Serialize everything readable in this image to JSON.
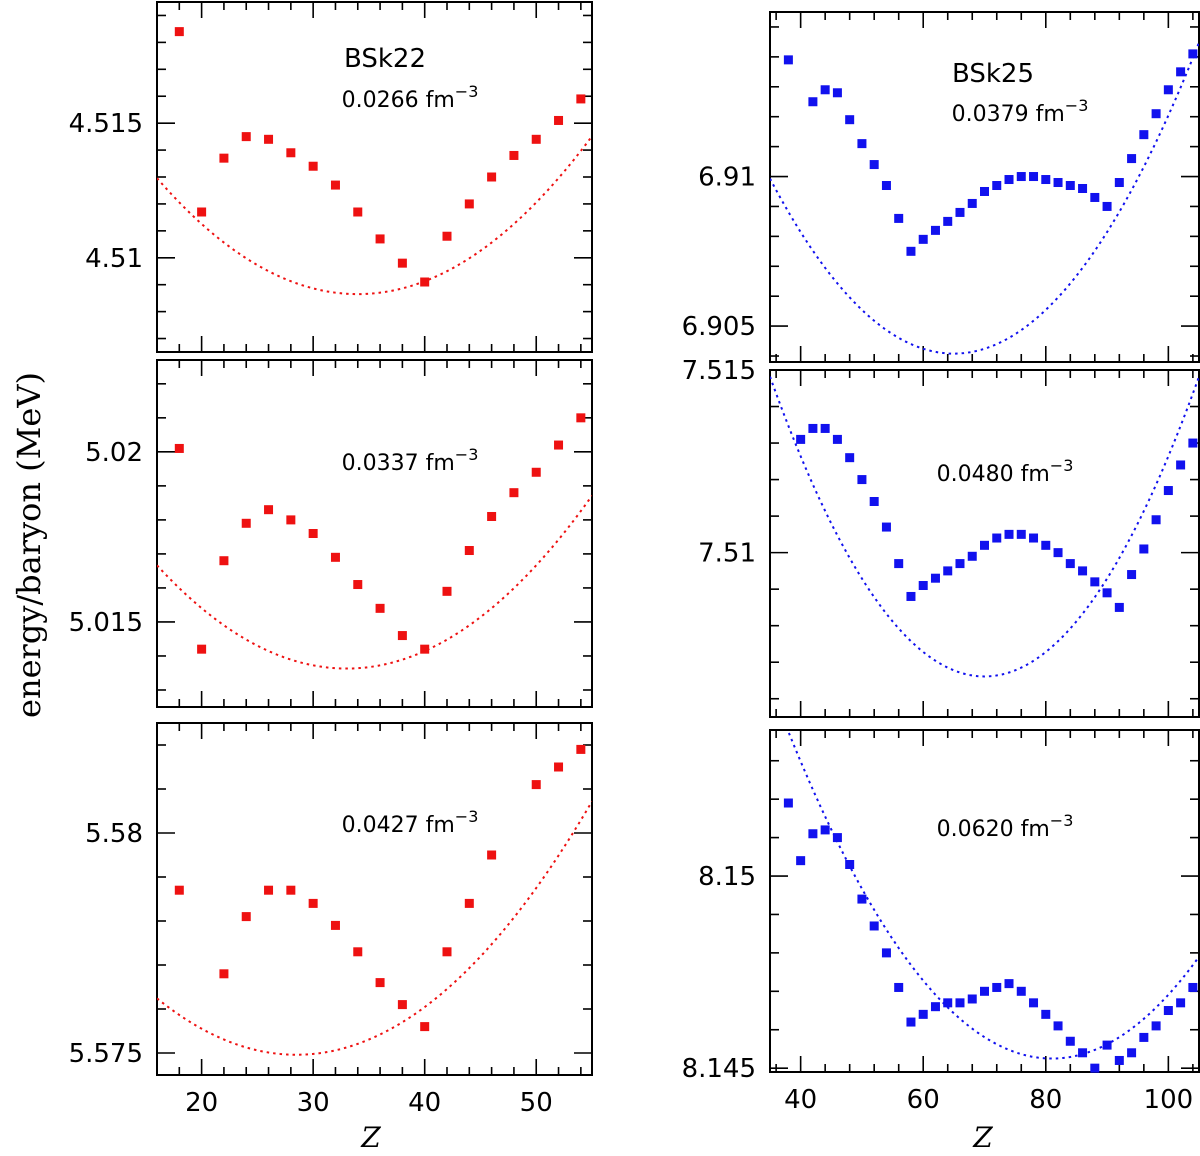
{
  "figure": {
    "ylabel": "energy/baryon (MeV)",
    "xlabel": "Z",
    "colors": {
      "left": "#ee1111",
      "right": "#1111ee",
      "axis": "#000000"
    }
  },
  "chart_data": [
    {
      "type": "scatter",
      "id": "p1",
      "model": "BSk22",
      "density": "0.0266 fm",
      "density_exp": "−3",
      "xlim": [
        16,
        55
      ],
      "ylim": [
        4.5065,
        4.5195
      ],
      "xticks": [
        20,
        30,
        40,
        50
      ],
      "yticks": [
        4.51,
        4.515
      ],
      "ytick_labels": [
        "4.51",
        "4.515"
      ],
      "y_minor_step": 0.001,
      "x_minor_step": 2,
      "points": {
        "x": [
          18,
          20,
          22,
          24,
          26,
          28,
          30,
          32,
          34,
          36,
          38,
          40,
          42,
          44,
          46,
          48,
          50,
          52,
          54
        ],
        "y": [
          4.5184,
          4.5117,
          4.5137,
          4.5145,
          4.5144,
          4.5139,
          4.5134,
          4.5127,
          4.5117,
          4.5107,
          4.5098,
          4.5091,
          4.5108,
          4.512,
          4.513,
          4.5138,
          4.5144,
          4.5151,
          4.5159
        ]
      },
      "curve": {
        "xmin": 16,
        "xmax": 55,
        "vertex_x": 34,
        "vertex_y": 4.50865,
        "a": 1.33e-05
      }
    },
    {
      "type": "scatter",
      "id": "p2",
      "model": "",
      "density": "0.0337 fm",
      "density_exp": "−3",
      "xlim": [
        16,
        55
      ],
      "ylim": [
        5.0125,
        5.0227
      ],
      "xticks": [
        20,
        30,
        40,
        50
      ],
      "yticks": [
        5.015,
        5.02
      ],
      "ytick_labels": [
        "5.015",
        "5.02"
      ],
      "y_minor_step": 0.001,
      "x_minor_step": 2,
      "points": {
        "x": [
          18,
          20,
          22,
          24,
          26,
          28,
          30,
          32,
          34,
          36,
          38,
          40,
          42,
          44,
          46,
          48,
          50,
          52,
          54
        ],
        "y": [
          5.0201,
          5.0142,
          5.0168,
          5.0179,
          5.0183,
          5.018,
          5.0176,
          5.0169,
          5.0161,
          5.0154,
          5.0146,
          5.0142,
          5.0159,
          5.0171,
          5.0181,
          5.0188,
          5.0194,
          5.0202,
          5.021
        ]
      },
      "curve": {
        "xmin": 16,
        "xmax": 55,
        "vertex_x": 33,
        "vertex_y": 5.01363,
        "a": 1.05e-05
      }
    },
    {
      "type": "scatter",
      "id": "p3",
      "model": "",
      "density": "0.0427 fm",
      "density_exp": "−3",
      "xlim": [
        16,
        55
      ],
      "ylim": [
        5.5745,
        5.5825
      ],
      "xticks": [
        20,
        30,
        40,
        50
      ],
      "xtick_labels": [
        "20",
        "30",
        "40",
        "50"
      ],
      "yticks": [
        5.575,
        5.58
      ],
      "ytick_labels": [
        "5.575",
        "5.58"
      ],
      "y_minor_step": 0.001,
      "x_minor_step": 2,
      "points": {
        "x": [
          18,
          22,
          24,
          26,
          28,
          30,
          32,
          34,
          36,
          38,
          40,
          42,
          44,
          46,
          50,
          52,
          54
        ],
        "y": [
          5.5787,
          5.5768,
          5.5781,
          5.5787,
          5.5787,
          5.5784,
          5.5779,
          5.5773,
          5.5766,
          5.5761,
          5.5756,
          5.5773,
          5.5784,
          5.5795,
          5.5811,
          5.5815,
          5.5819
        ]
      },
      "curve": {
        "xmin": 16,
        "xmax": 55,
        "vertex_x": 28.5,
        "vertex_y": 5.57496,
        "a": 8.2e-06
      }
    },
    {
      "type": "scatter",
      "id": "p4",
      "model": "BSk25",
      "density": "0.0379 fm",
      "density_exp": "−3",
      "xlim": [
        35,
        105
      ],
      "ylim": [
        6.9038,
        6.9155
      ],
      "xticks": [
        40,
        60,
        80,
        100
      ],
      "yticks": [
        6.905,
        6.91
      ],
      "ytick_labels": [
        "6.905",
        "6.91"
      ],
      "y_minor_step": 0.001,
      "x_minor_step": 4,
      "points": {
        "x": [
          38,
          42,
          44,
          46,
          48,
          50,
          52,
          54,
          56,
          58,
          60,
          62,
          64,
          66,
          68,
          70,
          72,
          74,
          76,
          78,
          80,
          82,
          84,
          86,
          88,
          90,
          92,
          94,
          96,
          98,
          100,
          102,
          104
        ],
        "y": [
          6.9139,
          6.9125,
          6.9129,
          6.9128,
          6.9119,
          6.9111,
          6.9104,
          6.9097,
          6.9086,
          6.9075,
          6.9079,
          6.9082,
          6.9085,
          6.9088,
          6.9091,
          6.9095,
          6.9097,
          6.9099,
          6.91,
          6.91,
          6.9099,
          6.9098,
          6.9097,
          6.9096,
          6.9093,
          6.909,
          6.9098,
          6.9106,
          6.9114,
          6.9121,
          6.9129,
          6.9135,
          6.9141
        ]
      },
      "curve": {
        "xmin": 35,
        "xmax": 105,
        "vertex_x": 65,
        "vertex_y": 6.90408,
        "a": 6.5e-06
      }
    },
    {
      "type": "scatter",
      "id": "p5",
      "model": "",
      "density": "0.0480 fm",
      "density_exp": "−3",
      "xlim": [
        35,
        105
      ],
      "ylim": [
        7.5055,
        7.515
      ],
      "xticks": [
        40,
        60,
        80,
        100
      ],
      "yticks": [
        7.51,
        7.515
      ],
      "ytick_labels": [
        "7.51",
        "7.515"
      ],
      "y_minor_step": 0.001,
      "x_minor_step": 4,
      "points": {
        "x": [
          40,
          42,
          44,
          46,
          48,
          50,
          52,
          54,
          56,
          58,
          60,
          62,
          64,
          66,
          68,
          70,
          72,
          74,
          76,
          78,
          80,
          82,
          84,
          86,
          88,
          90,
          92,
          94,
          96,
          98,
          100,
          102,
          104
        ],
        "y": [
          7.5131,
          7.5134,
          7.5134,
          7.5131,
          7.5126,
          7.512,
          7.5114,
          7.5107,
          7.5097,
          7.5088,
          7.5091,
          7.5093,
          7.5095,
          7.5097,
          7.5099,
          7.5102,
          7.5104,
          7.5105,
          7.5105,
          7.5104,
          7.5102,
          7.51,
          7.5097,
          7.5095,
          7.5092,
          7.5089,
          7.5085,
          7.5094,
          7.5101,
          7.5109,
          7.5117,
          7.5124,
          7.513
        ]
      },
      "curve": {
        "xmin": 35,
        "xmax": 105,
        "vertex_x": 70,
        "vertex_y": 7.50661,
        "a": 6.7e-06
      }
    },
    {
      "type": "scatter",
      "id": "p6",
      "model": "",
      "density": "0.0620 fm",
      "density_exp": "−3",
      "xlim": [
        35,
        105
      ],
      "ylim": [
        8.1449,
        8.1538
      ],
      "xticks": [
        40,
        60,
        80,
        100
      ],
      "xtick_labels": [
        "40",
        "60",
        "80",
        "100"
      ],
      "yticks": [
        8.145,
        8.15
      ],
      "ytick_labels": [
        "8.145",
        "8.15"
      ],
      "y_minor_step": 0.001,
      "x_minor_step": 4,
      "points": {
        "x": [
          38,
          40,
          42,
          44,
          46,
          48,
          50,
          52,
          54,
          56,
          58,
          60,
          62,
          64,
          66,
          68,
          70,
          72,
          74,
          76,
          78,
          80,
          82,
          84,
          86,
          88,
          90,
          92,
          94,
          96,
          98,
          100,
          102,
          104
        ],
        "y": [
          8.1519,
          8.1504,
          8.1511,
          8.1512,
          8.151,
          8.1503,
          8.1494,
          8.1487,
          8.148,
          8.1471,
          8.1462,
          8.1464,
          8.1466,
          8.1467,
          8.1467,
          8.1468,
          8.147,
          8.1471,
          8.1472,
          8.147,
          8.1467,
          8.1464,
          8.1461,
          8.1457,
          8.1454,
          8.145,
          8.1456,
          8.1452,
          8.1454,
          8.1458,
          8.1461,
          8.1465,
          8.1467,
          8.1471
        ]
      },
      "curve": {
        "xmin": 35,
        "xmax": 105,
        "vertex_x": 81,
        "vertex_y": 8.14525,
        "a": 4.6e-06
      }
    }
  ]
}
